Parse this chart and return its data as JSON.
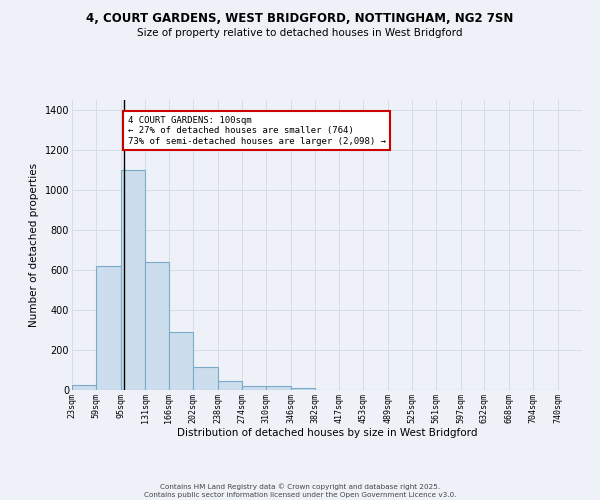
{
  "title_line1": "4, COURT GARDENS, WEST BRIDGFORD, NOTTINGHAM, NG2 7SN",
  "title_line2": "Size of property relative to detached houses in West Bridgford",
  "xlabel": "Distribution of detached houses by size in West Bridgford",
  "ylabel": "Number of detached properties",
  "bin_labels": [
    "23sqm",
    "59sqm",
    "95sqm",
    "131sqm",
    "166sqm",
    "202sqm",
    "238sqm",
    "274sqm",
    "310sqm",
    "346sqm",
    "382sqm",
    "417sqm",
    "453sqm",
    "489sqm",
    "525sqm",
    "561sqm",
    "597sqm",
    "632sqm",
    "668sqm",
    "704sqm",
    "740sqm"
  ],
  "bar_values": [
    25,
    620,
    1100,
    640,
    290,
    115,
    45,
    20,
    20,
    10,
    0,
    0,
    0,
    0,
    0,
    0,
    0,
    0,
    0,
    0
  ],
  "bar_color": "#ccdded",
  "bar_edge_color": "#7aaac8",
  "grid_color": "#d4dde8",
  "background_color": "#eef2f8",
  "vline_x": 100,
  "vline_color": "#000000",
  "annotation_text": "4 COURT GARDENS: 100sqm\n← 27% of detached houses are smaller (764)\n73% of semi-detached houses are larger (2,098) →",
  "annotation_box_color": "#ffffff",
  "annotation_box_edge": "#cc0000",
  "ylim": [
    0,
    1450
  ],
  "yticks": [
    0,
    200,
    400,
    600,
    800,
    1000,
    1200,
    1400
  ],
  "footer_line1": "Contains HM Land Registry data © Crown copyright and database right 2025.",
  "footer_line2": "Contains public sector information licensed under the Open Government Licence v3.0.",
  "bin_edges": [
    23,
    59,
    95,
    131,
    166,
    202,
    238,
    274,
    310,
    346,
    382,
    417,
    453,
    489,
    525,
    561,
    597,
    632,
    668,
    704,
    740
  ],
  "xlim_right": 776
}
